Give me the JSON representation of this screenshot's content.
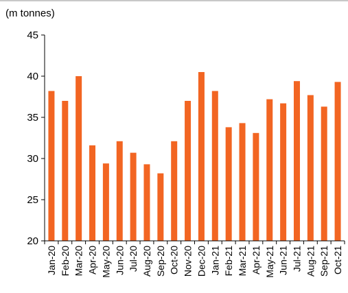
{
  "chart_data": {
    "type": "bar",
    "title": "",
    "unit_label": "(m tonnes)",
    "xlabel": "",
    "ylabel": "",
    "ylim": [
      20,
      45
    ],
    "yticks": [
      20,
      25,
      30,
      35,
      40,
      45
    ],
    "grid": false,
    "legend": "none",
    "bar_color": "#f26522",
    "categories": [
      "Jan-20",
      "Feb-20",
      "Mar-20",
      "Apr-20",
      "May-20",
      "Jun-20",
      "Jul-20",
      "Aug-20",
      "Sep-20",
      "Oct-20",
      "Nov-20",
      "Dec-20",
      "Jan-21",
      "Feb-21",
      "Mar-21",
      "Apr-21",
      "May-21",
      "Jun-21",
      "Jul-21",
      "Aug-21",
      "Sep-21",
      "Oct-21"
    ],
    "values": [
      38.2,
      37.0,
      40.0,
      31.6,
      29.4,
      32.1,
      30.7,
      29.3,
      28.2,
      32.1,
      37.0,
      40.5,
      38.2,
      33.8,
      34.3,
      33.1,
      37.2,
      36.7,
      39.4,
      37.7,
      36.3,
      39.3
    ]
  }
}
